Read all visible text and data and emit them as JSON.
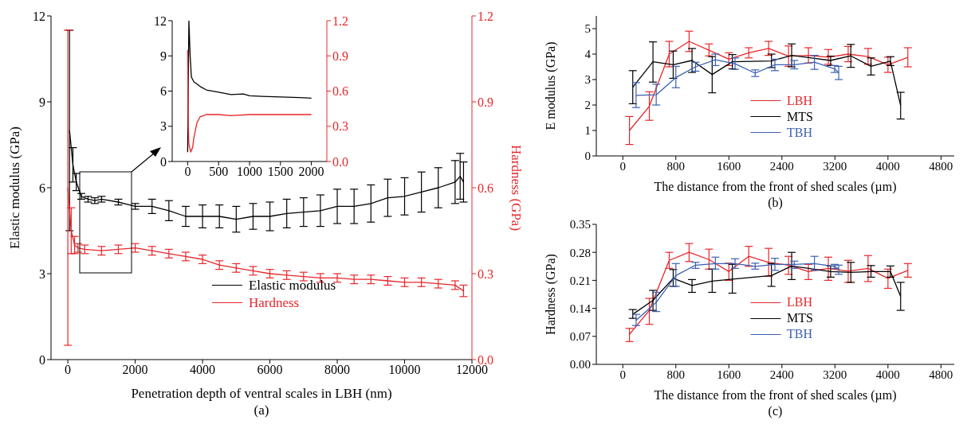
{
  "chart_data": [
    {
      "type": "line",
      "xlabel": "Penetration depth of ventral scales in LBH (nm)",
      "ylabel": "Elastic modulus (GPa)",
      "y2label": "Hardness (GPa)",
      "xlim": [
        -500,
        12000
      ],
      "xticks": [
        0,
        2000,
        4000,
        6000,
        8000,
        10000,
        12000
      ],
      "ylim": [
        0,
        12
      ],
      "yticks": [
        0,
        3,
        6,
        9,
        12
      ],
      "y2lim": [
        0,
        1.2
      ],
      "y2ticks": [
        {
          "value": 0,
          "label": "0.0"
        },
        0.3,
        0.6,
        0.9,
        1.2
      ],
      "legend": "bottom",
      "annotations": [
        "(a)"
      ],
      "series": [
        {
          "name": "Elastic modulus",
          "color": "#000000",
          "x": [
            50,
            150,
            250,
            400,
            600,
            800,
            1000,
            1500,
            2000,
            2500,
            3000,
            3500,
            4000,
            4500,
            5000,
            5500,
            6000,
            6500,
            7000,
            7500,
            8000,
            8500,
            9000,
            9500,
            10000,
            10500,
            11000,
            11500,
            11650,
            11750
          ],
          "values": [
            8,
            6.8,
            6.2,
            5.7,
            5.6,
            5.55,
            5.6,
            5.5,
            5.35,
            5.35,
            5.2,
            5,
            5,
            5,
            4.9,
            5,
            5,
            5.1,
            5.15,
            5.2,
            5.35,
            5.35,
            5.45,
            5.65,
            5.7,
            5.85,
            6,
            6.2,
            6.4,
            6.2
          ],
          "errors": [
            3.5,
            0.6,
            0.3,
            0.1,
            0.1,
            0.1,
            0.1,
            0.1,
            0.1,
            0.25,
            0.35,
            0.35,
            0.4,
            0.4,
            0.45,
            0.45,
            0.5,
            0.5,
            0.5,
            0.55,
            0.6,
            0.6,
            0.65,
            0.65,
            0.65,
            0.7,
            0.7,
            0.75,
            0.8,
            0.7
          ]
        },
        {
          "name": "Hardness",
          "color": "#e8262a",
          "axis": "y2",
          "x": [
            0,
            100,
            200,
            300,
            500,
            1000,
            1500,
            2000,
            2500,
            3000,
            3500,
            4000,
            4500,
            5000,
            5500,
            6000,
            6500,
            7000,
            7500,
            8000,
            8500,
            9000,
            9500,
            10000,
            10500,
            11000,
            11500,
            11750
          ],
          "values": [
            0.6,
            0.45,
            0.4,
            0.39,
            0.385,
            0.38,
            0.385,
            0.39,
            0.38,
            0.37,
            0.36,
            0.35,
            0.33,
            0.32,
            0.31,
            0.3,
            0.295,
            0.29,
            0.285,
            0.285,
            0.28,
            0.28,
            0.275,
            0.27,
            0.27,
            0.265,
            0.26,
            0.24
          ],
          "errors": [
            0.55,
            0.08,
            0.03,
            0.015,
            0.015,
            0.015,
            0.015,
            0.015,
            0.015,
            0.015,
            0.015,
            0.015,
            0.015,
            0.015,
            0.015,
            0.015,
            0.015,
            0.015,
            0.015,
            0.015,
            0.015,
            0.015,
            0.015,
            0.015,
            0.015,
            0.015,
            0.015,
            0.02
          ]
        }
      ]
    },
    {
      "type": "line",
      "xlim": [
        -250,
        2250
      ],
      "xticks": [
        0,
        500,
        1000,
        1500,
        2000
      ],
      "ylim": [
        0,
        12
      ],
      "yticks": [
        0,
        3,
        6,
        9,
        12
      ],
      "y2lim": [
        0,
        1.2
      ],
      "y2ticks": [
        {
          "value": 0,
          "label": "0.0"
        },
        0.3,
        0.6,
        0.9,
        1.2
      ],
      "series": [
        {
          "color": "#000000",
          "x": [
            0,
            10,
            20,
            40,
            60,
            100,
            200,
            300,
            500,
            700,
            900,
            1000,
            1200,
            1500,
            1800,
            2000
          ],
          "values": [
            0.8,
            7,
            12,
            9,
            7.2,
            6.8,
            6.4,
            6.1,
            5.9,
            5.7,
            5.75,
            5.6,
            5.55,
            5.5,
            5.45,
            5.4
          ]
        },
        {
          "color": "#e8262a",
          "axis": "y2",
          "x": [
            0,
            10,
            20,
            50,
            80,
            100,
            150,
            200,
            300,
            500,
            700,
            1000,
            1500,
            2000
          ],
          "values": [
            0.95,
            0.3,
            0.15,
            0.08,
            0.12,
            0.2,
            0.33,
            0.38,
            0.4,
            0.4,
            0.39,
            0.4,
            0.4,
            0.4
          ]
        }
      ]
    },
    {
      "type": "line",
      "xlabel": "The distance from the front of shed scales (µm)",
      "ylabel": "E modulus (GPa)",
      "xlim": [
        -400,
        5000
      ],
      "xticks": [
        0,
        800,
        1600,
        2400,
        3200,
        4000,
        4800
      ],
      "ylim": [
        0,
        5.5
      ],
      "yticks": [
        0,
        1,
        2,
        3,
        4,
        5
      ],
      "legend": "bottom",
      "annotations": [
        "(b)"
      ],
      "series": [
        {
          "name": "LBH",
          "color": "#e8262a",
          "x": [
            100,
            400,
            700,
            1000,
            1300,
            1600,
            1900,
            2200,
            2500,
            2800,
            3100,
            3400,
            3700,
            4000,
            4300
          ],
          "values": [
            1,
            1.95,
            4,
            4.5,
            4.15,
            3.8,
            4.05,
            4.22,
            3.92,
            3.95,
            3.88,
            4,
            3.9,
            3.58,
            3.87
          ],
          "errors": [
            [
              0.45,
              1.55
            ],
            [
              1.4,
              2.52
            ],
            [
              3.5,
              4.5
            ],
            [
              4.1,
              4.9
            ],
            [
              3.93,
              4.4
            ],
            [
              3.55,
              4.05
            ],
            [
              3.85,
              4.25
            ],
            [
              3.95,
              4.5
            ],
            [
              3.52,
              4.32
            ],
            [
              3.65,
              4.25
            ],
            [
              3.6,
              4.18
            ],
            [
              3.7,
              4.3
            ],
            [
              3.6,
              4.22
            ],
            [
              3.28,
              3.88
            ],
            [
              3.5,
              4.25
            ]
          ]
        },
        {
          "name": "MTS",
          "color": "#000000",
          "x": [
            150,
            455,
            760,
            1044,
            1348,
            1653,
            2242,
            2547,
            3135,
            3440,
            3744,
            4037,
            4191
          ],
          "values": [
            2.7,
            3.7,
            3.58,
            3.75,
            3.2,
            3.7,
            3.73,
            3.95,
            3.75,
            3.93,
            3.52,
            3.72,
            1.98
          ],
          "errors": [
            [
              2.05,
              3.35
            ],
            [
              2.9,
              4.48
            ],
            [
              3.05,
              4.12
            ],
            [
              3.28,
              4.22
            ],
            [
              2.48,
              3.9
            ],
            [
              3.42,
              3.98
            ],
            [
              3.47,
              4
            ],
            [
              3.5,
              4.4
            ],
            [
              3.55,
              3.92
            ],
            [
              3.48,
              4.38
            ],
            [
              3.18,
              3.85
            ],
            [
              3.55,
              3.9
            ],
            [
              1.45,
              2.5
            ]
          ]
        },
        {
          "name": "TBH",
          "color": "#3a5fb4",
          "x": [
            200,
            504,
            800,
            1097,
            1397,
            1693,
            1997,
            2294,
            2586,
            2891,
            3196,
            3257
          ],
          "values": [
            2.38,
            2.4,
            3.08,
            3.5,
            3.78,
            3.62,
            3.25,
            3.58,
            3.58,
            3.68,
            3.42,
            3.27
          ],
          "errors": [
            [
              1.9,
              2.88
            ],
            [
              2,
              2.82
            ],
            [
              2.68,
              3.52
            ],
            [
              3.33,
              3.68
            ],
            [
              3.55,
              4
            ],
            [
              3.4,
              3.85
            ],
            [
              3.12,
              3.38
            ],
            [
              3.35,
              3.8
            ],
            [
              3.42,
              3.75
            ],
            [
              3.4,
              3.95
            ],
            [
              3.28,
              3.55
            ],
            [
              3,
              3.52
            ]
          ]
        }
      ]
    },
    {
      "type": "line",
      "xlabel": "The distance from the front of shed scales (µm)",
      "ylabel": "Hardness (GPa)",
      "xlim": [
        -400,
        5000
      ],
      "xticks": [
        0,
        800,
        1600,
        2400,
        3200,
        4000,
        4800
      ],
      "ylim": [
        0,
        0.35
      ],
      "yticks": [
        {
          "value": 0,
          "label": "0.00"
        },
        0.07,
        0.14,
        0.21,
        0.28,
        0.35
      ],
      "legend": "bottom",
      "annotations": [
        "(c)"
      ],
      "series": [
        {
          "name": "LBH",
          "color": "#e8262a",
          "x": [
            100,
            400,
            700,
            1000,
            1300,
            1600,
            1900,
            2200,
            2500,
            2800,
            3100,
            3400,
            3700,
            4000,
            4300
          ],
          "values": [
            0.075,
            0.135,
            0.26,
            0.28,
            0.262,
            0.232,
            0.27,
            0.255,
            0.248,
            0.232,
            0.24,
            0.233,
            0.24,
            0.215,
            0.235
          ],
          "errors": [
            [
              0.057,
              0.09
            ],
            [
              0.1,
              0.165
            ],
            [
              0.24,
              0.28
            ],
            [
              0.257,
              0.302
            ],
            [
              0.238,
              0.288
            ],
            [
              0.21,
              0.253
            ],
            [
              0.245,
              0.295
            ],
            [
              0.22,
              0.29
            ],
            [
              0.225,
              0.27
            ],
            [
              0.212,
              0.25
            ],
            [
              0.21,
              0.268
            ],
            [
              0.205,
              0.26
            ],
            [
              0.207,
              0.272
            ],
            [
              0.19,
              0.238
            ],
            [
              0.218,
              0.252
            ]
          ]
        },
        {
          "name": "MTS",
          "color": "#000000",
          "x": [
            150,
            455,
            760,
            1044,
            1348,
            1653,
            2242,
            2547,
            3135,
            3440,
            3744,
            4037,
            4191
          ],
          "values": [
            0.125,
            0.16,
            0.215,
            0.197,
            0.208,
            0.213,
            0.222,
            0.246,
            0.232,
            0.23,
            0.232,
            0.232,
            0.17
          ],
          "errors": [
            [
              0.115,
              0.137
            ],
            [
              0.135,
              0.185
            ],
            [
              0.195,
              0.237
            ],
            [
              0.18,
              0.212
            ],
            [
              0.18,
              0.238
            ],
            [
              0.178,
              0.25
            ],
            [
              0.195,
              0.252
            ],
            [
              0.212,
              0.28
            ],
            [
              0.218,
              0.246
            ],
            [
              0.205,
              0.255
            ],
            [
              0.218,
              0.247
            ],
            [
              0.218,
              0.246
            ],
            [
              0.135,
              0.205
            ]
          ]
        },
        {
          "name": "TBH",
          "color": "#3a5fb4",
          "x": [
            200,
            504,
            800,
            1097,
            1397,
            1693,
            1997,
            2294,
            2586,
            2891,
            3196,
            3257
          ],
          "values": [
            0.11,
            0.155,
            0.222,
            0.248,
            0.252,
            0.252,
            0.245,
            0.25,
            0.25,
            0.252,
            0.245,
            0.237
          ],
          "errors": [
            [
              0.097,
              0.125
            ],
            [
              0.132,
              0.18
            ],
            [
              0.195,
              0.252
            ],
            [
              0.24,
              0.255
            ],
            [
              0.238,
              0.268
            ],
            [
              0.24,
              0.264
            ],
            [
              0.238,
              0.253
            ],
            [
              0.235,
              0.265
            ],
            [
              0.24,
              0.258
            ],
            [
              0.235,
              0.27
            ],
            [
              0.24,
              0.25
            ],
            [
              0.225,
              0.248
            ]
          ]
        }
      ]
    }
  ]
}
